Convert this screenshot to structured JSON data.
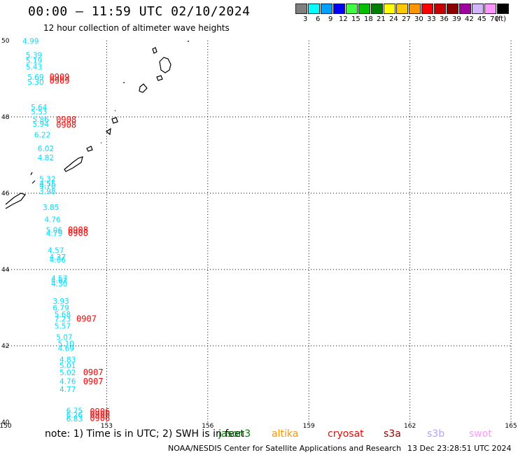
{
  "header": {
    "title": "00:00 – 11:59 UTC 02/10/2024",
    "subtitle": "12 hour collection of altimeter wave heights"
  },
  "color_scale": {
    "unit": "(ft)",
    "swatches": [
      {
        "label": "3",
        "color": "#7f7f7f"
      },
      {
        "label": "6",
        "color": "#00ffff"
      },
      {
        "label": "9",
        "color": "#00a0ff"
      },
      {
        "label": "12",
        "color": "#0000ff"
      },
      {
        "label": "15",
        "color": "#40ff40"
      },
      {
        "label": "18",
        "color": "#00c000"
      },
      {
        "label": "21",
        "color": "#008000"
      },
      {
        "label": "24",
        "color": "#ffff00"
      },
      {
        "label": "27",
        "color": "#ffc800"
      },
      {
        "label": "30",
        "color": "#ff9600"
      },
      {
        "label": "33",
        "color": "#ff0000"
      },
      {
        "label": "36",
        "color": "#c80000"
      },
      {
        "label": "39",
        "color": "#8c0000"
      },
      {
        "label": "42",
        "color": "#a000a0"
      },
      {
        "label": "45",
        "color": "#d2b4ff"
      },
      {
        "label": "70",
        "color": "#ff96ff"
      },
      {
        "label": "",
        "color": "#000000"
      }
    ]
  },
  "chart_data": {
    "type": "scatter",
    "xlim": [
      150,
      165
    ],
    "ylim": [
      40,
      50
    ],
    "x_ticks": [
      "150",
      "153",
      "156",
      "159",
      "162",
      "165"
    ],
    "y_ticks": [
      "40",
      "42",
      "44",
      "46",
      "48",
      "50"
    ],
    "grid": true,
    "swh_color": "#00e0ff",
    "time_color": "#ff0000",
    "swh_points": [
      {
        "x": 150.5,
        "y": 49.92,
        "v": "4.99"
      },
      {
        "x": 150.6,
        "y": 49.55,
        "v": "5.39"
      },
      {
        "x": 150.6,
        "y": 49.4,
        "v": "5.19"
      },
      {
        "x": 150.6,
        "y": 49.24,
        "v": "5.43"
      },
      {
        "x": 150.65,
        "y": 48.97,
        "v": "5.69"
      },
      {
        "x": 150.65,
        "y": 48.84,
        "v": "5.30"
      },
      {
        "x": 150.75,
        "y": 48.18,
        "v": "5.64"
      },
      {
        "x": 150.75,
        "y": 48.06,
        "v": "5.53"
      },
      {
        "x": 150.8,
        "y": 47.86,
        "v": "5.86"
      },
      {
        "x": 150.8,
        "y": 47.74,
        "v": "5.94"
      },
      {
        "x": 150.85,
        "y": 47.46,
        "v": "6.22"
      },
      {
        "x": 150.95,
        "y": 47.1,
        "v": "6.02"
      },
      {
        "x": 150.95,
        "y": 46.86,
        "v": "4.82"
      },
      {
        "x": 151.0,
        "y": 46.3,
        "v": "5.32"
      },
      {
        "x": 151.0,
        "y": 46.18,
        "v": "4.55"
      },
      {
        "x": 151.0,
        "y": 46.13,
        "v": "4.70"
      },
      {
        "x": 151.0,
        "y": 45.98,
        "v": "3.98"
      },
      {
        "x": 151.1,
        "y": 45.56,
        "v": "3.85"
      },
      {
        "x": 151.15,
        "y": 45.24,
        "v": "4.76"
      },
      {
        "x": 151.2,
        "y": 44.96,
        "v": "5.06"
      },
      {
        "x": 151.2,
        "y": 44.88,
        "v": "4.79"
      },
      {
        "x": 151.25,
        "y": 44.43,
        "v": "4.57"
      },
      {
        "x": 151.3,
        "y": 44.26,
        "v": "4.37"
      },
      {
        "x": 151.3,
        "y": 44.18,
        "v": "4.06"
      },
      {
        "x": 151.35,
        "y": 43.7,
        "v": "4.57"
      },
      {
        "x": 151.35,
        "y": 43.64,
        "v": "4.62"
      },
      {
        "x": 151.35,
        "y": 43.56,
        "v": "4.30"
      },
      {
        "x": 151.4,
        "y": 43.1,
        "v": "3.93"
      },
      {
        "x": 151.4,
        "y": 42.93,
        "v": "6.79"
      },
      {
        "x": 151.45,
        "y": 42.75,
        "v": "5.68"
      },
      {
        "x": 151.45,
        "y": 42.63,
        "v": "7.23"
      },
      {
        "x": 151.45,
        "y": 42.45,
        "v": "5.57"
      },
      {
        "x": 151.5,
        "y": 42.16,
        "v": "5.07"
      },
      {
        "x": 151.55,
        "y": 41.99,
        "v": "5.10"
      },
      {
        "x": 151.55,
        "y": 41.86,
        "v": "4.69"
      },
      {
        "x": 151.6,
        "y": 41.57,
        "v": "4.83"
      },
      {
        "x": 151.6,
        "y": 41.41,
        "v": "5.01"
      },
      {
        "x": 151.6,
        "y": 41.23,
        "v": "5.02"
      },
      {
        "x": 151.6,
        "y": 41.0,
        "v": "4.76"
      },
      {
        "x": 151.6,
        "y": 40.79,
        "v": "4.77"
      },
      {
        "x": 151.8,
        "y": 40.23,
        "v": "6.75"
      },
      {
        "x": 151.8,
        "y": 40.12,
        "v": "6.26"
      },
      {
        "x": 151.8,
        "y": 40.02,
        "v": "6.83"
      }
    ],
    "time_points": [
      {
        "x": 151.3,
        "y": 48.97,
        "v": "0909"
      },
      {
        "x": 151.3,
        "y": 48.87,
        "v": "0909"
      },
      {
        "x": 151.5,
        "y": 47.85,
        "v": "0908"
      },
      {
        "x": 151.5,
        "y": 47.72,
        "v": "0908"
      },
      {
        "x": 151.85,
        "y": 44.96,
        "v": "0908"
      },
      {
        "x": 151.85,
        "y": 44.88,
        "v": "0908"
      },
      {
        "x": 152.1,
        "y": 42.63,
        "v": "0907"
      },
      {
        "x": 152.3,
        "y": 41.23,
        "v": "0907"
      },
      {
        "x": 152.3,
        "y": 40.99,
        "v": "0907"
      },
      {
        "x": 152.5,
        "y": 40.2,
        "v": "0906"
      },
      {
        "x": 152.5,
        "y": 40.12,
        "v": "0906"
      },
      {
        "x": 152.5,
        "y": 40.03,
        "v": "0906"
      }
    ]
  },
  "footer": {
    "note": "note:  1) Time is in UTC;  2) SWH is in feet",
    "satellites": [
      {
        "name": "jason3",
        "color": "#008000"
      },
      {
        "name": "altika",
        "color": "#ff9600"
      },
      {
        "name": "cryosat",
        "color": "#ff0000"
      },
      {
        "name": "s3a",
        "color": "#a00000"
      },
      {
        "name": "s3b",
        "color": "#b4a0ff"
      },
      {
        "name": "swot",
        "color": "#ff96ff"
      }
    ],
    "credit": "NOAA/NESDIS Center for Satellite Applications and Research",
    "generated": "13 Dec 23:28:51 UTC 2024"
  }
}
